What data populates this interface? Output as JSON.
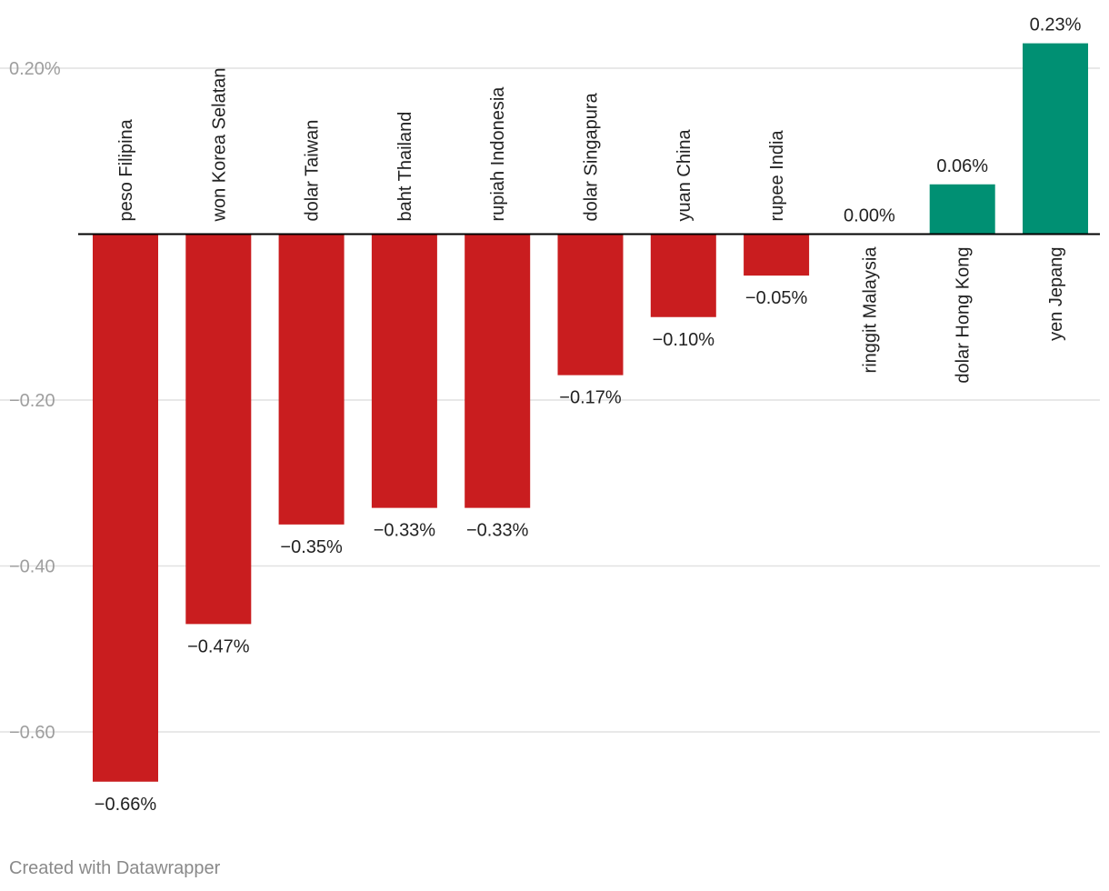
{
  "chart_data": {
    "type": "bar",
    "categories": [
      "peso Filipina",
      "won Korea Selatan",
      "dolar Taiwan",
      "baht Thailand",
      "rupiah Indonesia",
      "dolar Singapura",
      "yuan China",
      "rupee India",
      "ringgit Malaysia",
      "dolar Hong Kong",
      "yen Jepang"
    ],
    "values": [
      -0.66,
      -0.47,
      -0.35,
      -0.33,
      -0.33,
      -0.17,
      -0.1,
      -0.05,
      0.0,
      0.06,
      0.23
    ],
    "value_labels": [
      "−0.66%",
      "−0.47%",
      "−0.35%",
      "−0.33%",
      "−0.33%",
      "−0.17%",
      "−0.10%",
      "−0.05%",
      "0.00%",
      "0.06%",
      "0.23%"
    ],
    "yticks": [
      0.2,
      -0.2,
      -0.4,
      -0.6
    ],
    "ytick_labels": [
      "0.20%",
      "−0.20",
      "−0.40",
      "−0.60"
    ],
    "ylim": [
      -0.66,
      0.23
    ],
    "title": "",
    "xlabel": "",
    "ylabel": "",
    "grid": true,
    "colors": {
      "negative": "#c91d1f",
      "positive": "#009073",
      "grid": "#e1e1e1",
      "baseline": "#000000",
      "tick_label": "#9e9e9e",
      "text": "#222222"
    }
  },
  "footer": {
    "credit": "Created with Datawrapper"
  }
}
